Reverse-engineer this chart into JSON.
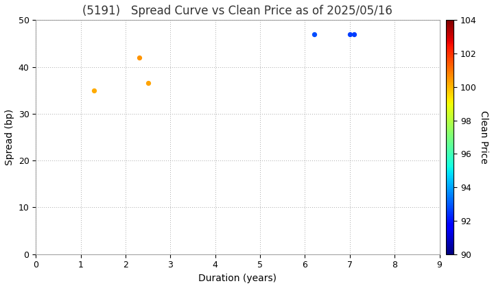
{
  "title": "(5191)   Spread Curve vs Clean Price as of 2025/05/16",
  "xlabel": "Duration (years)",
  "ylabel": "Spread (bp)",
  "colorbar_label": "Clean Price",
  "points": [
    {
      "duration": 1.3,
      "spread": 35.0,
      "clean_price": 100.2
    },
    {
      "duration": 2.3,
      "spread": 42.0,
      "clean_price": 100.5
    },
    {
      "duration": 2.5,
      "spread": 36.5,
      "clean_price": 100.3
    },
    {
      "duration": 6.2,
      "spread": 47.0,
      "clean_price": 92.8
    },
    {
      "duration": 7.0,
      "spread": 47.0,
      "clean_price": 92.6
    },
    {
      "duration": 7.1,
      "spread": 47.0,
      "clean_price": 92.6
    }
  ],
  "xlim": [
    0,
    9
  ],
  "ylim": [
    0,
    50
  ],
  "xticks": [
    0,
    1,
    2,
    3,
    4,
    5,
    6,
    7,
    8,
    9
  ],
  "yticks": [
    0,
    10,
    20,
    30,
    40,
    50
  ],
  "colorbar_min": 90,
  "colorbar_max": 104,
  "colorbar_ticks": [
    90,
    92,
    94,
    96,
    98,
    100,
    102,
    104
  ],
  "background_color": "#ffffff",
  "grid_color": "#aaaaaa",
  "title_fontsize": 12,
  "label_fontsize": 10,
  "tick_fontsize": 9,
  "title_color": "#333333",
  "point_size": 18
}
